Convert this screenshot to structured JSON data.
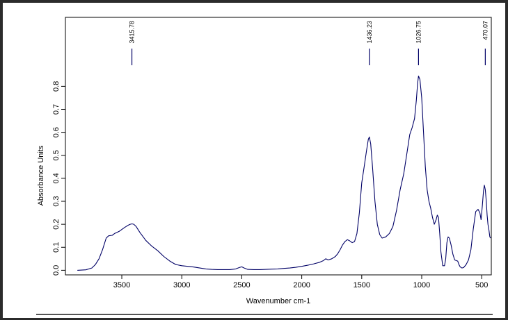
{
  "chart_data": {
    "type": "line",
    "title": "",
    "xlabel": "Wavenumber cm-1",
    "ylabel": "Absorbance Units",
    "xlim": [
      3970,
      420
    ],
    "ylim": [
      -0.02,
      1.1
    ],
    "x_ticks": [
      3500,
      3000,
      2500,
      2000,
      1500,
      1000,
      500
    ],
    "y_ticks": [
      0.0,
      0.1,
      0.2,
      0.3,
      0.4,
      0.5,
      0.6,
      0.7,
      0.8
    ],
    "x_tick_labels": [
      "3500",
      "3000",
      "2500",
      "2000",
      "1500",
      "1000",
      "500"
    ],
    "y_tick_labels": [
      "0.0",
      "0.1",
      "0.2",
      "0.3",
      "0.4",
      "0.5",
      "0.6",
      "0.7",
      "0.8"
    ],
    "peak_labels": [
      {
        "x": 3415.78,
        "label": "3415.78"
      },
      {
        "x": 1436.23,
        "label": "1436.23"
      },
      {
        "x": 1026.75,
        "label": "1026.75"
      },
      {
        "x": 470.07,
        "label": "470.07"
      }
    ],
    "series": [
      {
        "color": "#000066",
        "x": [
          3870,
          3800,
          3750,
          3720,
          3690,
          3660,
          3630,
          3610,
          3580,
          3560,
          3520,
          3480,
          3450,
          3430,
          3415,
          3400,
          3380,
          3350,
          3300,
          3250,
          3200,
          3150,
          3100,
          3050,
          3000,
          2950,
          2900,
          2850,
          2800,
          2750,
          2700,
          2650,
          2600,
          2550,
          2520,
          2500,
          2480,
          2450,
          2400,
          2350,
          2300,
          2250,
          2200,
          2150,
          2100,
          2050,
          2000,
          1950,
          1900,
          1850,
          1820,
          1800,
          1780,
          1750,
          1720,
          1700,
          1680,
          1660,
          1640,
          1620,
          1600,
          1580,
          1560,
          1540,
          1520,
          1500,
          1480,
          1460,
          1445,
          1436,
          1425,
          1410,
          1390,
          1370,
          1350,
          1330,
          1300,
          1270,
          1240,
          1210,
          1180,
          1150,
          1120,
          1100,
          1080,
          1060,
          1045,
          1035,
          1027,
          1015,
          1000,
          985,
          970,
          955,
          940,
          925,
          910,
          895,
          880,
          870,
          860,
          850,
          840,
          825,
          810,
          800,
          790,
          780,
          770,
          755,
          740,
          725,
          710,
          700,
          690,
          680,
          665,
          650,
          630,
          610,
          590,
          570,
          550,
          530,
          515,
          505,
          495,
          485,
          478,
          470,
          462,
          455,
          448,
          440,
          432,
          425
        ],
        "y": [
          0.0,
          0.002,
          0.01,
          0.025,
          0.05,
          0.09,
          0.14,
          0.15,
          0.152,
          0.16,
          0.17,
          0.185,
          0.195,
          0.2,
          0.202,
          0.2,
          0.19,
          0.165,
          0.13,
          0.105,
          0.085,
          0.06,
          0.04,
          0.025,
          0.02,
          0.017,
          0.014,
          0.01,
          0.006,
          0.004,
          0.003,
          0.003,
          0.003,
          0.006,
          0.012,
          0.015,
          0.01,
          0.004,
          0.003,
          0.003,
          0.004,
          0.005,
          0.006,
          0.008,
          0.01,
          0.013,
          0.017,
          0.022,
          0.028,
          0.035,
          0.042,
          0.05,
          0.045,
          0.05,
          0.06,
          0.072,
          0.09,
          0.11,
          0.125,
          0.133,
          0.128,
          0.12,
          0.125,
          0.16,
          0.25,
          0.38,
          0.45,
          0.52,
          0.57,
          0.58,
          0.55,
          0.45,
          0.3,
          0.2,
          0.155,
          0.14,
          0.145,
          0.16,
          0.19,
          0.26,
          0.35,
          0.42,
          0.52,
          0.59,
          0.62,
          0.66,
          0.74,
          0.81,
          0.845,
          0.83,
          0.75,
          0.6,
          0.45,
          0.35,
          0.3,
          0.27,
          0.23,
          0.2,
          0.22,
          0.24,
          0.23,
          0.16,
          0.08,
          0.02,
          0.02,
          0.05,
          0.12,
          0.145,
          0.14,
          0.11,
          0.07,
          0.045,
          0.042,
          0.04,
          0.025,
          0.015,
          0.01,
          0.012,
          0.025,
          0.045,
          0.09,
          0.18,
          0.255,
          0.265,
          0.25,
          0.22,
          0.28,
          0.345,
          0.37,
          0.35,
          0.3,
          0.24,
          0.2,
          0.175,
          0.145,
          0.14
        ]
      }
    ]
  }
}
